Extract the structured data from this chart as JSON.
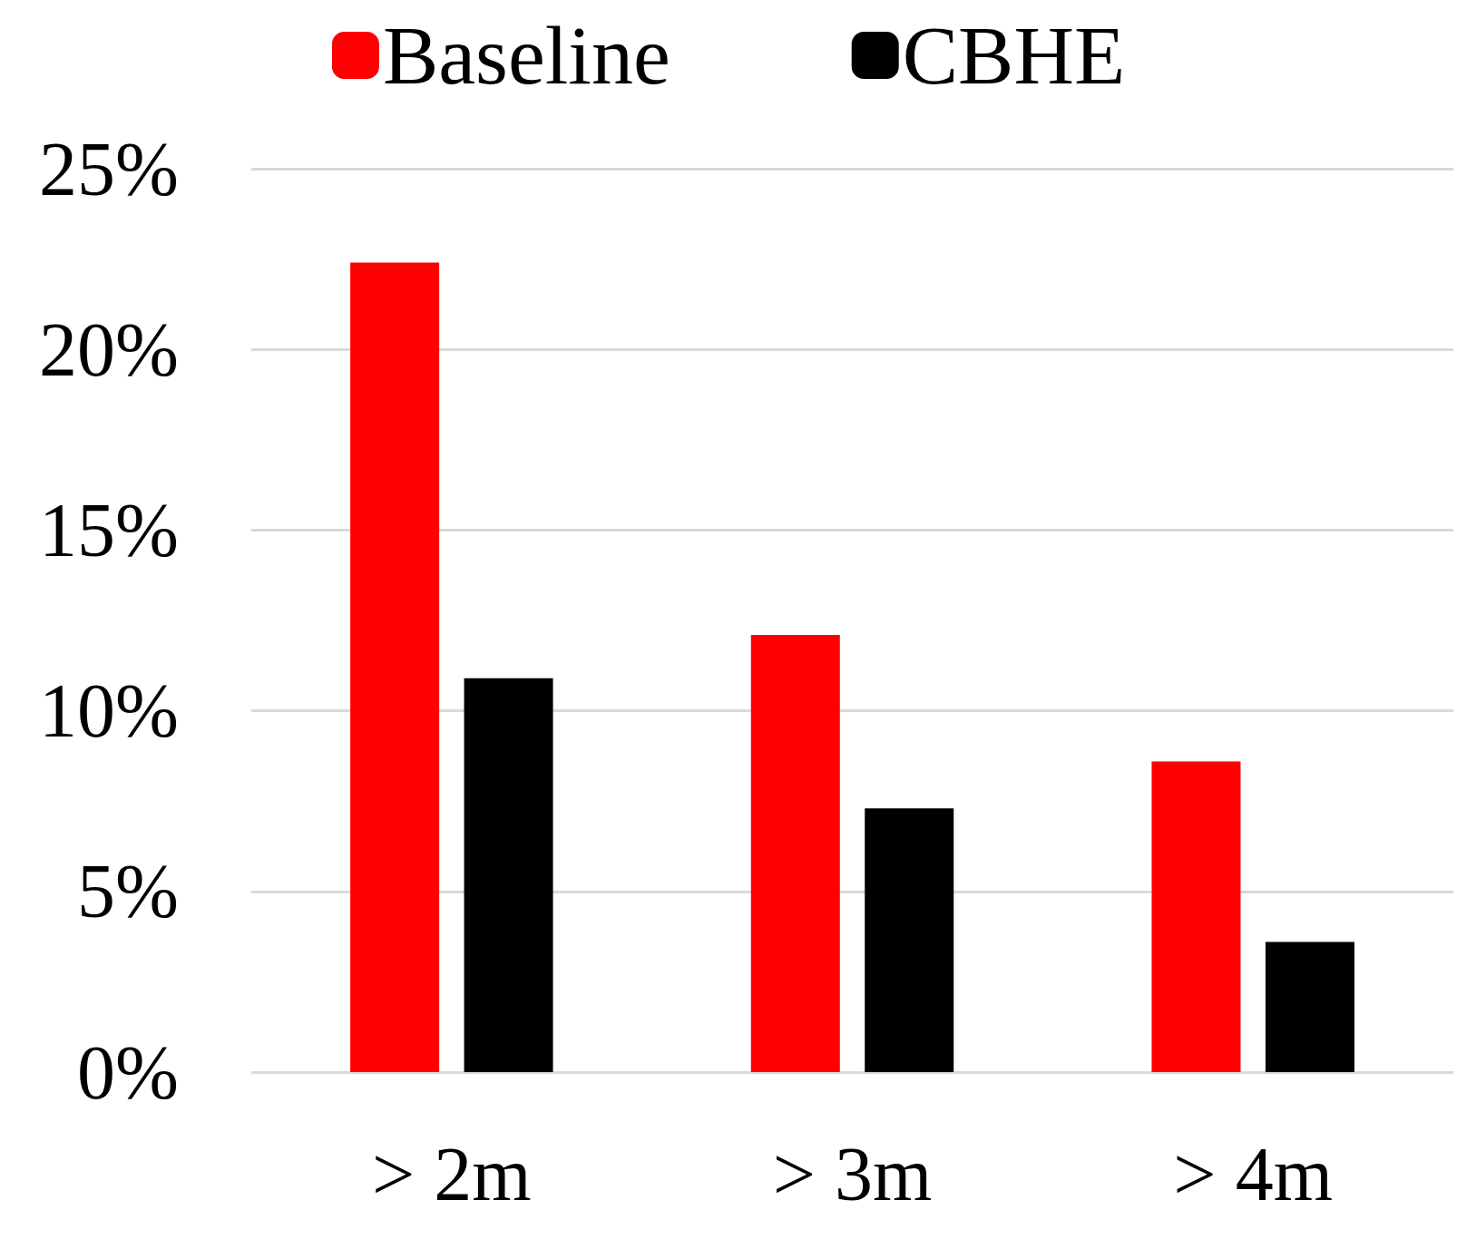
{
  "chart_data": {
    "type": "bar",
    "categories": [
      "> 2m",
      "> 3m",
      "> 4m"
    ],
    "series": [
      {
        "name": "Baseline",
        "color": "#ff0000",
        "values": [
          22.4,
          12.1,
          8.6
        ]
      },
      {
        "name": "CBHE",
        "color": "#000000",
        "values": [
          10.9,
          7.3,
          3.6
        ]
      }
    ],
    "ylim": [
      0,
      25
    ],
    "yticks": [
      {
        "value": 0,
        "label": "0%"
      },
      {
        "value": 5,
        "label": "5%"
      },
      {
        "value": 10,
        "label": "10%"
      },
      {
        "value": 15,
        "label": "15%"
      },
      {
        "value": 20,
        "label": "20%"
      },
      {
        "value": 25,
        "label": "25%"
      }
    ],
    "grid": "y",
    "legend": "top"
  }
}
